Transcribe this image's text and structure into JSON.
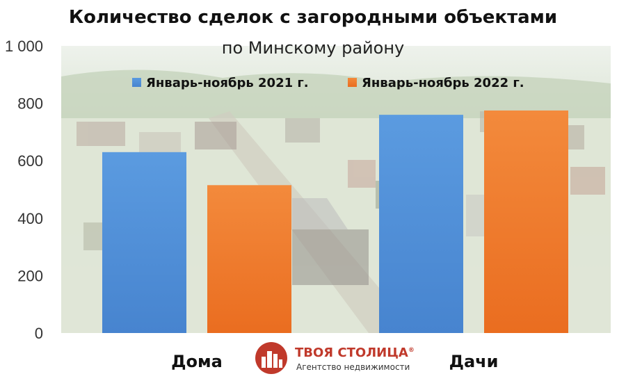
{
  "colors": {
    "series_2021": "#4a90d9",
    "series_2022": "#f07a2a",
    "brand_red": "#c0392b"
  },
  "logo": {
    "name": "ТВОЯ СТОЛИЦА",
    "registered_mark": "®",
    "tagline": "Агентство недвижимости",
    "icon": "city-buildings-icon"
  },
  "chart_data": {
    "type": "bar",
    "title": "Количество сделок с загородными объектами",
    "subtitle": "по Минскому району",
    "categories": [
      "Дома",
      "Дачи"
    ],
    "series": [
      {
        "name": "Январь-ноябрь 2021 г.",
        "values": [
          630,
          760
        ]
      },
      {
        "name": "Январь-ноябрь 2022 г.",
        "values": [
          515,
          775
        ]
      }
    ],
    "yticks": [
      "0",
      "200",
      "400",
      "600",
      "800",
      "1 000"
    ],
    "ylim": [
      0,
      1000
    ],
    "grid": false,
    "legend_position": "top",
    "background": "photo of country houses (faded)"
  }
}
